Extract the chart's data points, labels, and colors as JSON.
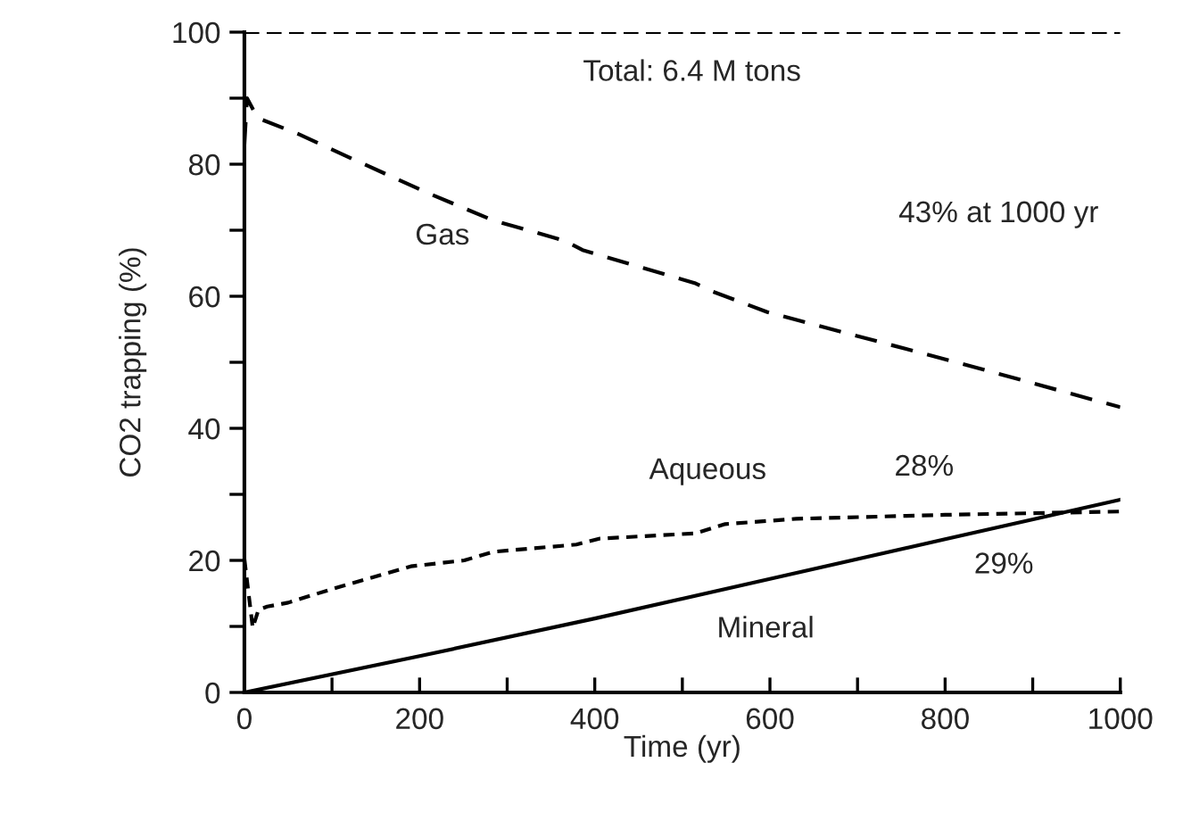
{
  "chart_data": {
    "type": "line",
    "xlabel": "Time (yr)",
    "ylabel": "CO2 trapping (%)",
    "xlim": [
      0,
      1000
    ],
    "ylim": [
      0,
      100
    ],
    "xticks": [
      0,
      {
        "value": 100,
        "label": null
      },
      200,
      {
        "value": 300,
        "label": null
      },
      400,
      {
        "value": 500,
        "label": null
      },
      600,
      {
        "value": 700,
        "label": null
      },
      800,
      {
        "value": 900,
        "label": null
      },
      1000
    ],
    "yticks": [
      0,
      {
        "value": 10,
        "label": null
      },
      20,
      {
        "value": 30,
        "label": null
      },
      40,
      {
        "value": 50,
        "label": null
      },
      60,
      {
        "value": 70,
        "label": null
      },
      80,
      {
        "value": 90,
        "label": null
      },
      100
    ],
    "grid": false,
    "legend": false,
    "marker": "none",
    "series": [
      {
        "color": "#000000",
        "line_style": "dashed",
        "x": [
          0,
          1000
        ],
        "values": [
          100,
          100
        ]
      },
      {
        "color": "#000000",
        "line_style": "dashed",
        "x": [
          0,
          3,
          15,
          61,
          135,
          210,
          284,
          366,
          386,
          514,
          535,
          597,
          827,
          1000
        ],
        "values": [
          83,
          90,
          87,
          84.6,
          80.1,
          75.6,
          71.5,
          68.4,
          67,
          62,
          60.7,
          57.6,
          49.5,
          43.2
        ]
      },
      {
        "color": "#000000",
        "line_style": "dashed",
        "x": [
          0,
          9.5,
          16,
          26,
          50,
          101,
          190,
          251,
          284,
          379,
          406,
          515,
          549,
          630,
          800,
          1000
        ],
        "values": [
          20.2,
          9.8,
          12.5,
          13,
          13.6,
          15.7,
          19.1,
          20,
          21.3,
          22.4,
          23.3,
          24.1,
          25.5,
          26.3,
          26.9,
          27.4
        ]
      },
      {
        "color": "#000000",
        "line_style": "solid",
        "x": [
          0,
          200,
          400,
          600,
          800,
          1000
        ],
        "values": [
          0,
          5.5,
          11.2,
          17.2,
          23.2,
          29.2
        ]
      }
    ],
    "annotations": [
      "Total: 6.4 M tons",
      "Gas",
      "43% at 1000 yr",
      "Aqueous",
      "28%",
      "29%",
      "Mineral"
    ]
  }
}
